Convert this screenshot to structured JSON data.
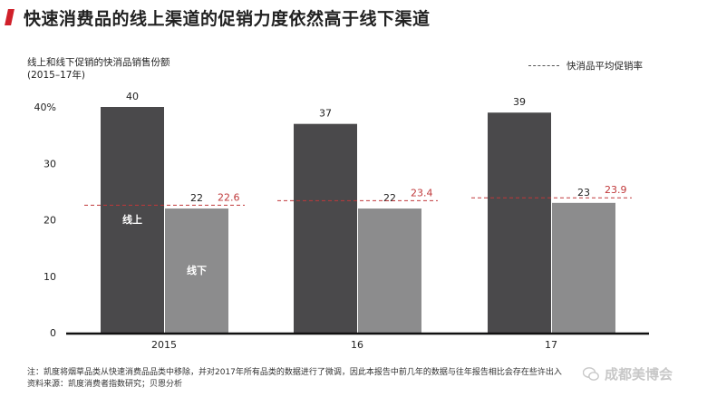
{
  "header": {
    "title": "快速消费品的线上渠道的促销力度依然高于线下渠道"
  },
  "chart_data": {
    "type": "bar",
    "title_lines": [
      "线上和线下促销的快消品销售份额",
      "(2015–17年)"
    ],
    "categories": [
      "2015",
      "16",
      "17"
    ],
    "series": [
      {
        "name": "线上",
        "values": [
          40,
          37,
          39
        ],
        "color": "#4a494b"
      },
      {
        "name": "线下",
        "values": [
          22,
          22,
          23
        ],
        "color": "#8c8c8d"
      }
    ],
    "avg_line": {
      "name": "快消品平均促销率",
      "values": [
        22.6,
        23.4,
        23.9
      ],
      "color": "#c0393b"
    },
    "value_labels": {
      "online": [
        "40",
        "37",
        "39"
      ],
      "offline": [
        "22",
        "22",
        "23"
      ],
      "avg": [
        "22.6",
        "23.4",
        "23.9"
      ]
    },
    "y_ticks": [
      "40%",
      "30",
      "20",
      "10",
      "0"
    ],
    "y_tick_values": [
      40,
      30,
      20,
      10,
      0
    ],
    "ylim": [
      0,
      40
    ],
    "grid": false,
    "legend_position": "top-right"
  },
  "footnote": {
    "line1": "注：凯度将烟草品类从快速消费品品类中移除，并对2017年所有品类的数据进行了微调，因此本报告中前几年的数据与往年报告相比会存在些许出入",
    "line2": "资料来源：凯度消费者指数研究；贝恩分析"
  },
  "watermark": {
    "text": "成都美博会",
    "icon": "wechat-icon"
  }
}
